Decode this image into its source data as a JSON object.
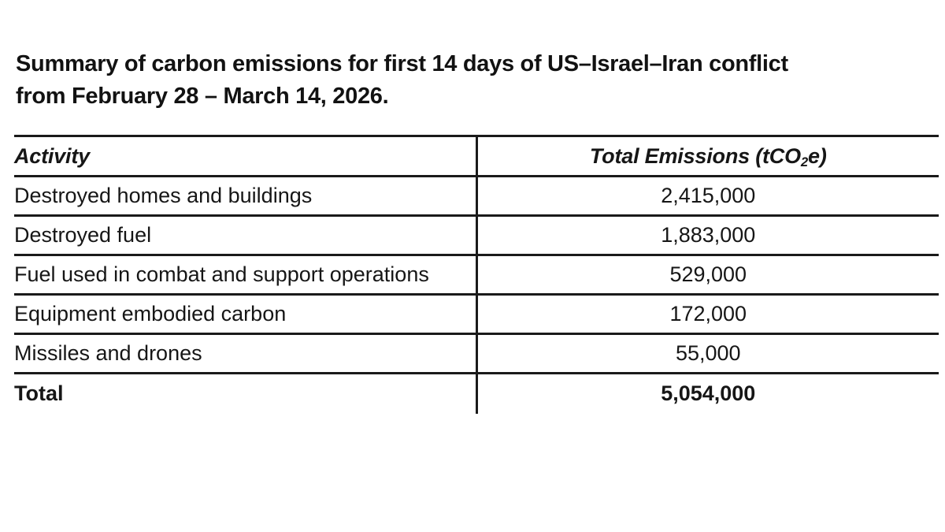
{
  "caption": {
    "line1": "Summary of carbon emissions for first 14 days of US–Israel–Iran conflict",
    "line2": "from February 28 – March 14, 2026."
  },
  "table": {
    "header": {
      "activity": "Activity",
      "emissions_prefix": "Total Emissions (tCO",
      "emissions_subscript": "2",
      "emissions_suffix": "e)"
    },
    "rows": [
      {
        "activity": "Destroyed homes and buildings",
        "emissions": "2,415,000"
      },
      {
        "activity": "Destroyed fuel",
        "emissions": "1,883,000"
      },
      {
        "activity": "Fuel used in combat and support operations",
        "emissions": "529,000"
      },
      {
        "activity": "Equipment embodied carbon",
        "emissions": "172,000"
      },
      {
        "activity": "Missiles and drones",
        "emissions": "55,000"
      }
    ],
    "total_row": {
      "label": "Total",
      "value": "5,054,000"
    }
  },
  "chart_data": {
    "type": "table",
    "title": "Summary of carbon emissions for first 14 days of US–Israel–Iran conflict from February 28 – March 14, 2026.",
    "columns": [
      "Activity",
      "Total Emissions (tCO2e)"
    ],
    "categories": [
      "Destroyed homes and buildings",
      "Destroyed fuel",
      "Fuel used in combat and support operations",
      "Equipment embodied carbon",
      "Missiles and drones"
    ],
    "values": [
      2415000,
      1883000,
      529000,
      172000,
      55000
    ],
    "total": 5054000,
    "unit": "tCO2e"
  },
  "colors": {
    "text": "#121212",
    "border": "#1a1a1a",
    "background": "#ffffff"
  }
}
